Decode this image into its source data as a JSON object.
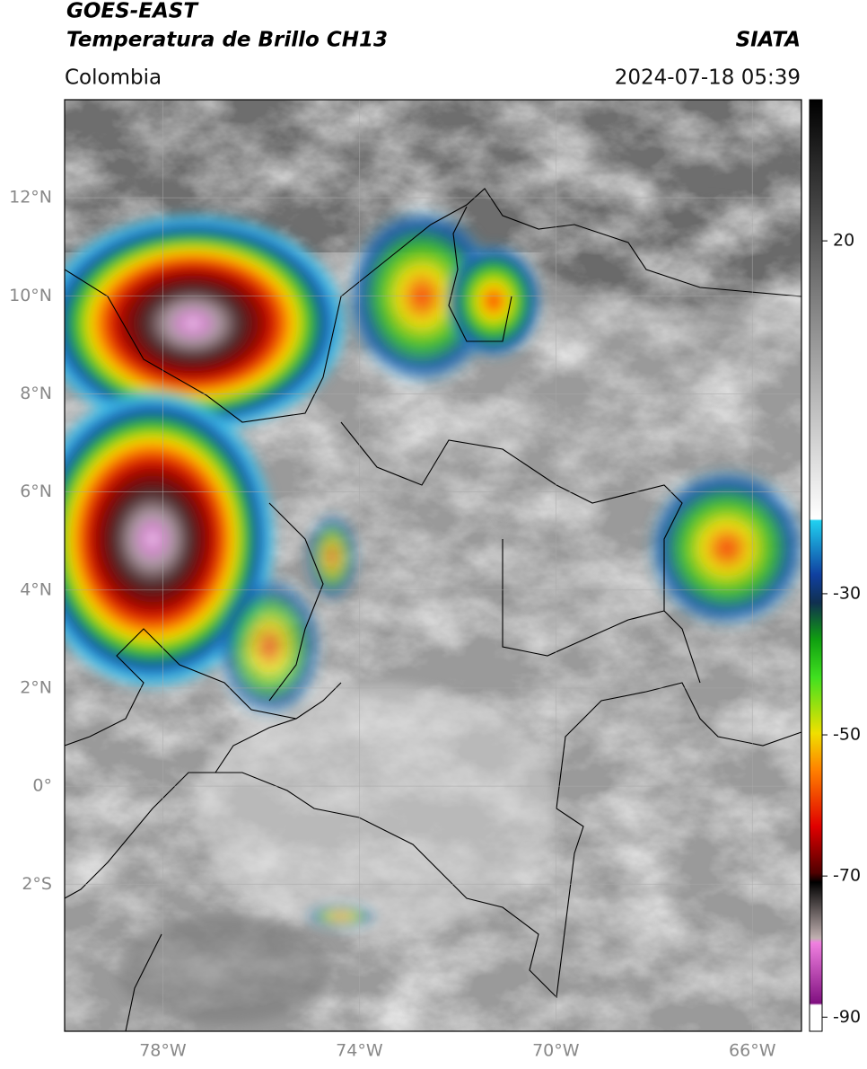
{
  "header": {
    "title": "GOES-EAST",
    "subtitle": "Temperatura de Brillo CH13",
    "source": "SIATA",
    "region": "Colombia",
    "datetime": "2024-07-18 05:39"
  },
  "map": {
    "xlim": [
      -80,
      -65
    ],
    "ylim": [
      -5,
      14
    ],
    "grid": true,
    "xticks": [
      {
        "value": -78,
        "label": "78°W"
      },
      {
        "value": -74,
        "label": "74°W"
      },
      {
        "value": -70,
        "label": "70°W"
      },
      {
        "value": -66,
        "label": "66°W"
      }
    ],
    "yticks": [
      {
        "value": 12,
        "label": "12°N"
      },
      {
        "value": 10,
        "label": "10°N"
      },
      {
        "value": 8,
        "label": "8°N"
      },
      {
        "value": 6,
        "label": "6°N"
      },
      {
        "value": 4,
        "label": "4°N"
      },
      {
        "value": 2,
        "label": "2°N"
      },
      {
        "value": 0,
        "label": "0°"
      },
      {
        "value": -2,
        "label": "2°S"
      }
    ]
  },
  "colorbar": {
    "lim": [
      -92,
      40
    ],
    "ticks": [
      20,
      -30,
      -50,
      -70,
      -90
    ]
  }
}
